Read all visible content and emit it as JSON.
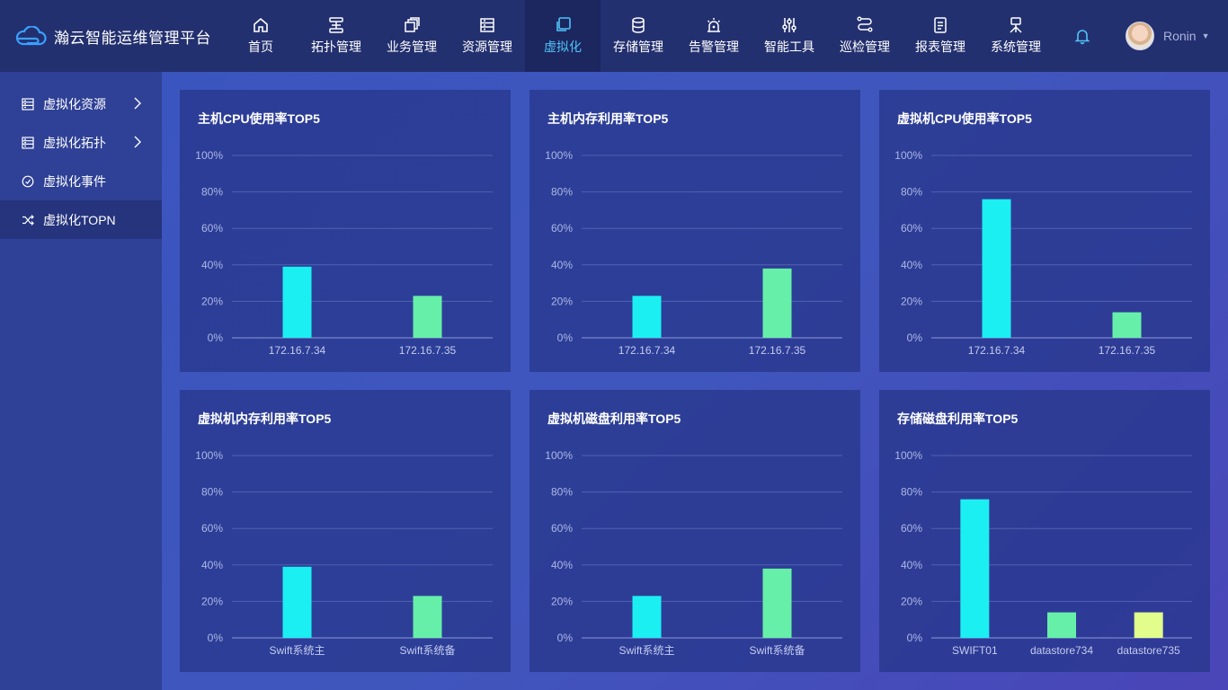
{
  "header": {
    "title": "瀚云智能运维管理平台",
    "nav": [
      {
        "label": "首页",
        "icon": "home-icon",
        "active": false
      },
      {
        "label": "拓扑管理",
        "icon": "topology-icon",
        "active": false
      },
      {
        "label": "业务管理",
        "icon": "business-icon",
        "active": false
      },
      {
        "label": "资源管理",
        "icon": "resource-icon",
        "active": false
      },
      {
        "label": "虚拟化",
        "icon": "virtualization-icon",
        "active": true
      },
      {
        "label": "存储管理",
        "icon": "storage-icon",
        "active": false
      },
      {
        "label": "告警管理",
        "icon": "alarm-icon",
        "active": false
      },
      {
        "label": "智能工具",
        "icon": "tools-icon",
        "active": false
      },
      {
        "label": "巡检管理",
        "icon": "inspection-icon",
        "active": false
      },
      {
        "label": "报表管理",
        "icon": "report-icon",
        "active": false
      },
      {
        "label": "系统管理",
        "icon": "system-icon",
        "active": false
      }
    ],
    "user": {
      "name": "Ronin"
    }
  },
  "sidebar": {
    "items": [
      {
        "label": "虚拟化资源",
        "icon": "list-icon",
        "has_children": true
      },
      {
        "label": "虚拟化拓扑",
        "icon": "list-icon",
        "has_children": true
      },
      {
        "label": "虚拟化事件",
        "icon": "clock-icon",
        "has_children": false
      },
      {
        "label": "虚拟化TOPN",
        "icon": "shuffle-icon",
        "has_children": false,
        "active": true
      }
    ]
  },
  "colors": {
    "cyan": "#1beff2",
    "green": "#66efa9",
    "yellow": "#e2fd8c",
    "accent": "#4fc3f7"
  },
  "chart_data": [
    {
      "type": "bar",
      "title": "主机CPU使用率TOP5",
      "categories": [
        "172.16.7.34",
        "172.16.7.35"
      ],
      "values": [
        39,
        23
      ],
      "colors": [
        "#1beff2",
        "#66efa9"
      ],
      "ylim": [
        0,
        100
      ],
      "yticks": [
        "0%",
        "20%",
        "40%",
        "60%",
        "80%",
        "100%"
      ],
      "grid": true
    },
    {
      "type": "bar",
      "title": "主机内存利用率TOP5",
      "categories": [
        "172.16.7.34",
        "172.16.7.35"
      ],
      "values": [
        23,
        38
      ],
      "colors": [
        "#1beff2",
        "#66efa9"
      ],
      "ylim": [
        0,
        100
      ],
      "yticks": [
        "0%",
        "20%",
        "40%",
        "60%",
        "80%",
        "100%"
      ],
      "grid": true
    },
    {
      "type": "bar",
      "title": "虚拟机CPU使用率TOP5",
      "categories": [
        "172.16.7.34",
        "172.16.7.35"
      ],
      "values": [
        76,
        14
      ],
      "colors": [
        "#1beff2",
        "#66efa9"
      ],
      "ylim": [
        0,
        100
      ],
      "yticks": [
        "0%",
        "20%",
        "40%",
        "60%",
        "80%",
        "100%"
      ],
      "grid": true
    },
    {
      "type": "bar",
      "title": "虚拟机内存利用率TOP5",
      "categories": [
        "Swift系统主",
        "Swift系统备"
      ],
      "values": [
        39,
        23
      ],
      "colors": [
        "#1beff2",
        "#66efa9"
      ],
      "ylim": [
        0,
        100
      ],
      "yticks": [
        "0%",
        "20%",
        "40%",
        "60%",
        "80%",
        "100%"
      ],
      "grid": true
    },
    {
      "type": "bar",
      "title": "虚拟机磁盘利用率TOP5",
      "categories": [
        "Swift系统主",
        "Swift系统备"
      ],
      "values": [
        23,
        38
      ],
      "colors": [
        "#1beff2",
        "#66efa9"
      ],
      "ylim": [
        0,
        100
      ],
      "yticks": [
        "0%",
        "20%",
        "40%",
        "60%",
        "80%",
        "100%"
      ],
      "grid": true
    },
    {
      "type": "bar",
      "title": "存储磁盘利用率TOP5",
      "categories": [
        "SWIFT01",
        "datastore734",
        "datastore735"
      ],
      "values": [
        76,
        14,
        14
      ],
      "colors": [
        "#1beff2",
        "#66efa9",
        "#e2fd8c"
      ],
      "ylim": [
        0,
        100
      ],
      "yticks": [
        "0%",
        "20%",
        "40%",
        "60%",
        "80%",
        "100%"
      ],
      "grid": true
    }
  ]
}
